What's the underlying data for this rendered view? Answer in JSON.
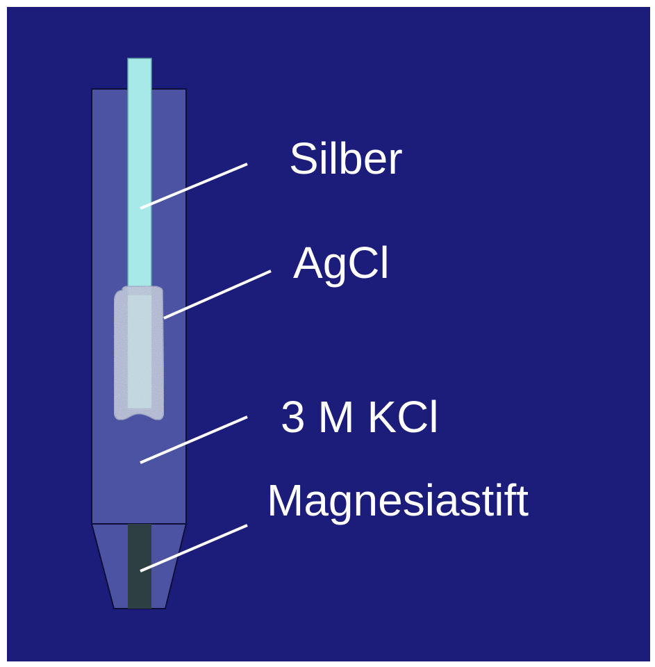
{
  "colors": {
    "background": "#1c1c7a",
    "frame": "#ffffff",
    "electrode_body": "#4b53a2",
    "silver_wire": "#a7e8e9",
    "agcl_coating": "#a9b4cc",
    "magnesia_pin": "#2d3f43",
    "leader_line": "#ffffff",
    "label_text": "#ffffff"
  },
  "labels": {
    "silber": "Silber",
    "agcl": "AgCl",
    "kcl": "3 M KCl",
    "magnesiastift": "Magnesiastift"
  }
}
